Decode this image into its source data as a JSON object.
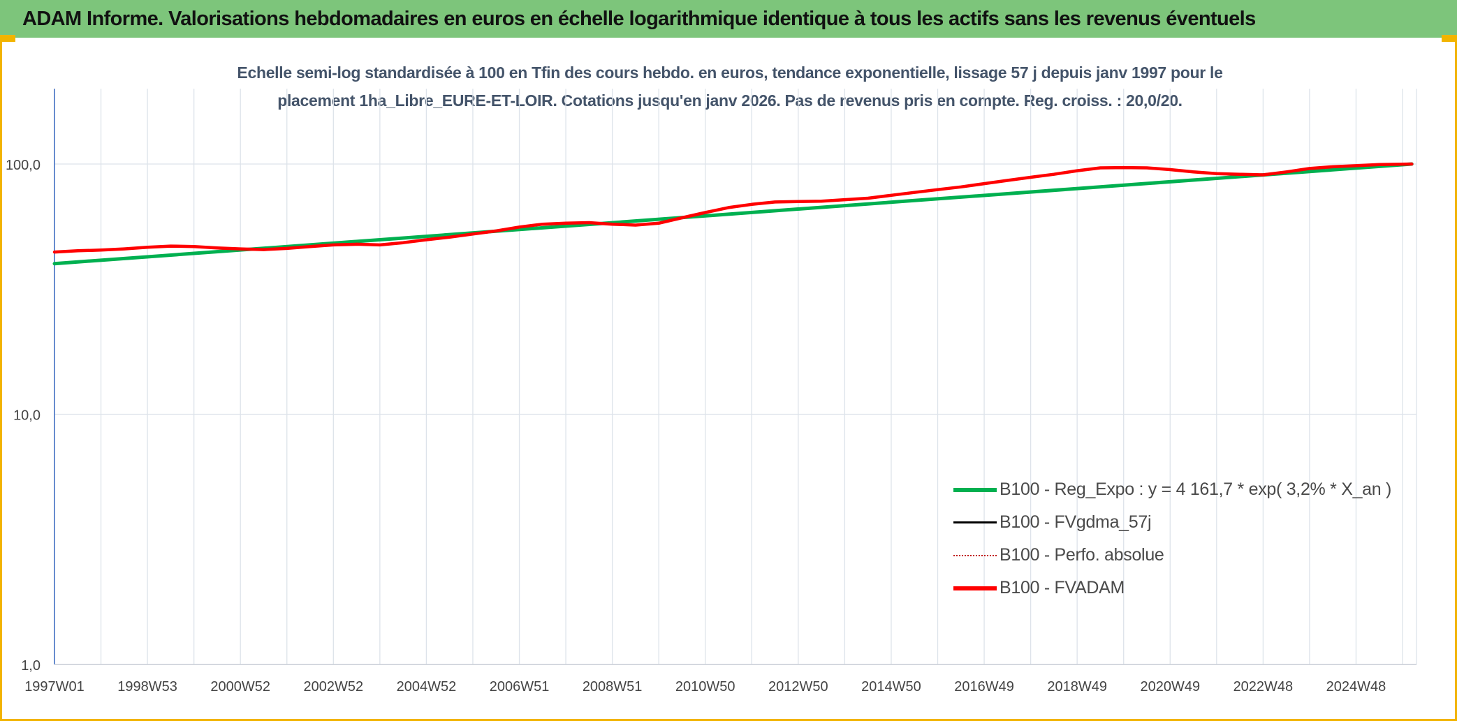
{
  "header": {
    "title": "ADAM Informe. Valorisations hebdomadaires en euros en échelle logarithmique identique à tous les actifs sans les revenus éventuels"
  },
  "colors": {
    "banner": "#7dc57b",
    "accent": "#f2b400",
    "grid": "#dde3ea",
    "axis": "#4472c4"
  },
  "chart_data": {
    "type": "line",
    "title": "Echelle semi-log standardisée à 100 en Tfin des cours hebdo. en euros, tendance exponentielle, lissage 57 j depuis janv 1997 pour le placement 1ha_Libre_EURE-ET-LOIR. Cotations jusqu'en janv 2026. Pas de revenus pris en compte. Reg. croiss. : 20,0/20.",
    "title_lines": [
      "Echelle semi-log standardisée à 100 en Tfin des cours hebdo. en euros, tendance exponentielle, lissage 57 j depuis janv 1997 pour le",
      "placement 1ha_Libre_EURE-ET-LOIR. Cotations jusqu'en janv 2026. Pas de revenus pris en compte. Reg. croiss. : 20,0/20."
    ],
    "y_scale": "log",
    "ylim": [
      1,
      200
    ],
    "y_ticks": [
      1,
      10,
      100
    ],
    "y_tick_labels": [
      "1,0",
      "10,0",
      "100,0"
    ],
    "xlim": [
      1997.0,
      2026.3
    ],
    "x_tick_values": [
      1997.0,
      1999.0,
      2001.0,
      2003.0,
      2005.0,
      2007.0,
      2009.0,
      2011.0,
      2013.0,
      2015.0,
      2017.0,
      2019.0,
      2021.0,
      2023.0,
      2025.0
    ],
    "x_tick_labels": [
      "1997W01",
      "1998W53",
      "2000W52",
      "2002W52",
      "2004W52",
      "2006W51",
      "2008W51",
      "2010W50",
      "2012W50",
      "2014W50",
      "2016W49",
      "2018W49",
      "2020W49",
      "2022W48",
      "2024W48"
    ],
    "minor_gridlines": true,
    "legend_position": "lower-right",
    "series": [
      {
        "name": "B100 - Reg_Expo : y = 4 161,7 * exp( 3,2% *  X_an )",
        "color": "#00b050",
        "style": "solid",
        "x": [
          1997.0,
          2026.2
        ],
        "y": [
          40.0,
          100.0
        ]
      },
      {
        "name": "B100 - FVgdma_57j",
        "color": "#000000",
        "style": "solid",
        "x": [],
        "y": []
      },
      {
        "name": "B100 - Perfo. absolue",
        "color": "#c00000",
        "style": "dotted",
        "x": [],
        "y": []
      },
      {
        "name": "B100 - FVADAM",
        "color": "#ff0000",
        "style": "solid",
        "x": [
          1997.0,
          1997.5,
          1998.0,
          1998.5,
          1999.0,
          1999.5,
          2000.0,
          2000.5,
          2001.0,
          2001.5,
          2002.0,
          2002.5,
          2003.0,
          2003.5,
          2004.0,
          2004.5,
          2005.0,
          2005.5,
          2006.0,
          2006.5,
          2007.0,
          2007.5,
          2008.0,
          2008.5,
          2009.0,
          2009.5,
          2010.0,
          2010.5,
          2011.0,
          2011.5,
          2012.0,
          2012.5,
          2013.0,
          2013.5,
          2014.0,
          2014.5,
          2015.0,
          2015.5,
          2016.0,
          2016.5,
          2017.0,
          2017.5,
          2018.0,
          2018.5,
          2019.0,
          2019.5,
          2020.0,
          2020.5,
          2021.0,
          2021.5,
          2022.0,
          2022.5,
          2023.0,
          2023.5,
          2024.0,
          2024.5,
          2025.0,
          2025.5,
          2026.2
        ],
        "y": [
          44.5,
          45.0,
          45.3,
          45.8,
          46.5,
          47.0,
          46.8,
          46.2,
          45.8,
          45.5,
          46.0,
          46.8,
          47.5,
          47.8,
          47.5,
          48.5,
          49.8,
          51.0,
          52.5,
          54.0,
          56.0,
          57.5,
          58.0,
          58.3,
          57.5,
          57.0,
          58.0,
          61.0,
          64.0,
          67.0,
          69.0,
          70.5,
          70.8,
          71.0,
          72.0,
          73.0,
          75.0,
          77.0,
          79.0,
          81.0,
          83.5,
          86.0,
          88.5,
          91.0,
          94.0,
          96.5,
          96.8,
          96.5,
          95.0,
          93.0,
          91.5,
          91.0,
          90.5,
          93.0,
          96.0,
          97.5,
          98.5,
          99.5,
          100.0
        ]
      }
    ]
  }
}
